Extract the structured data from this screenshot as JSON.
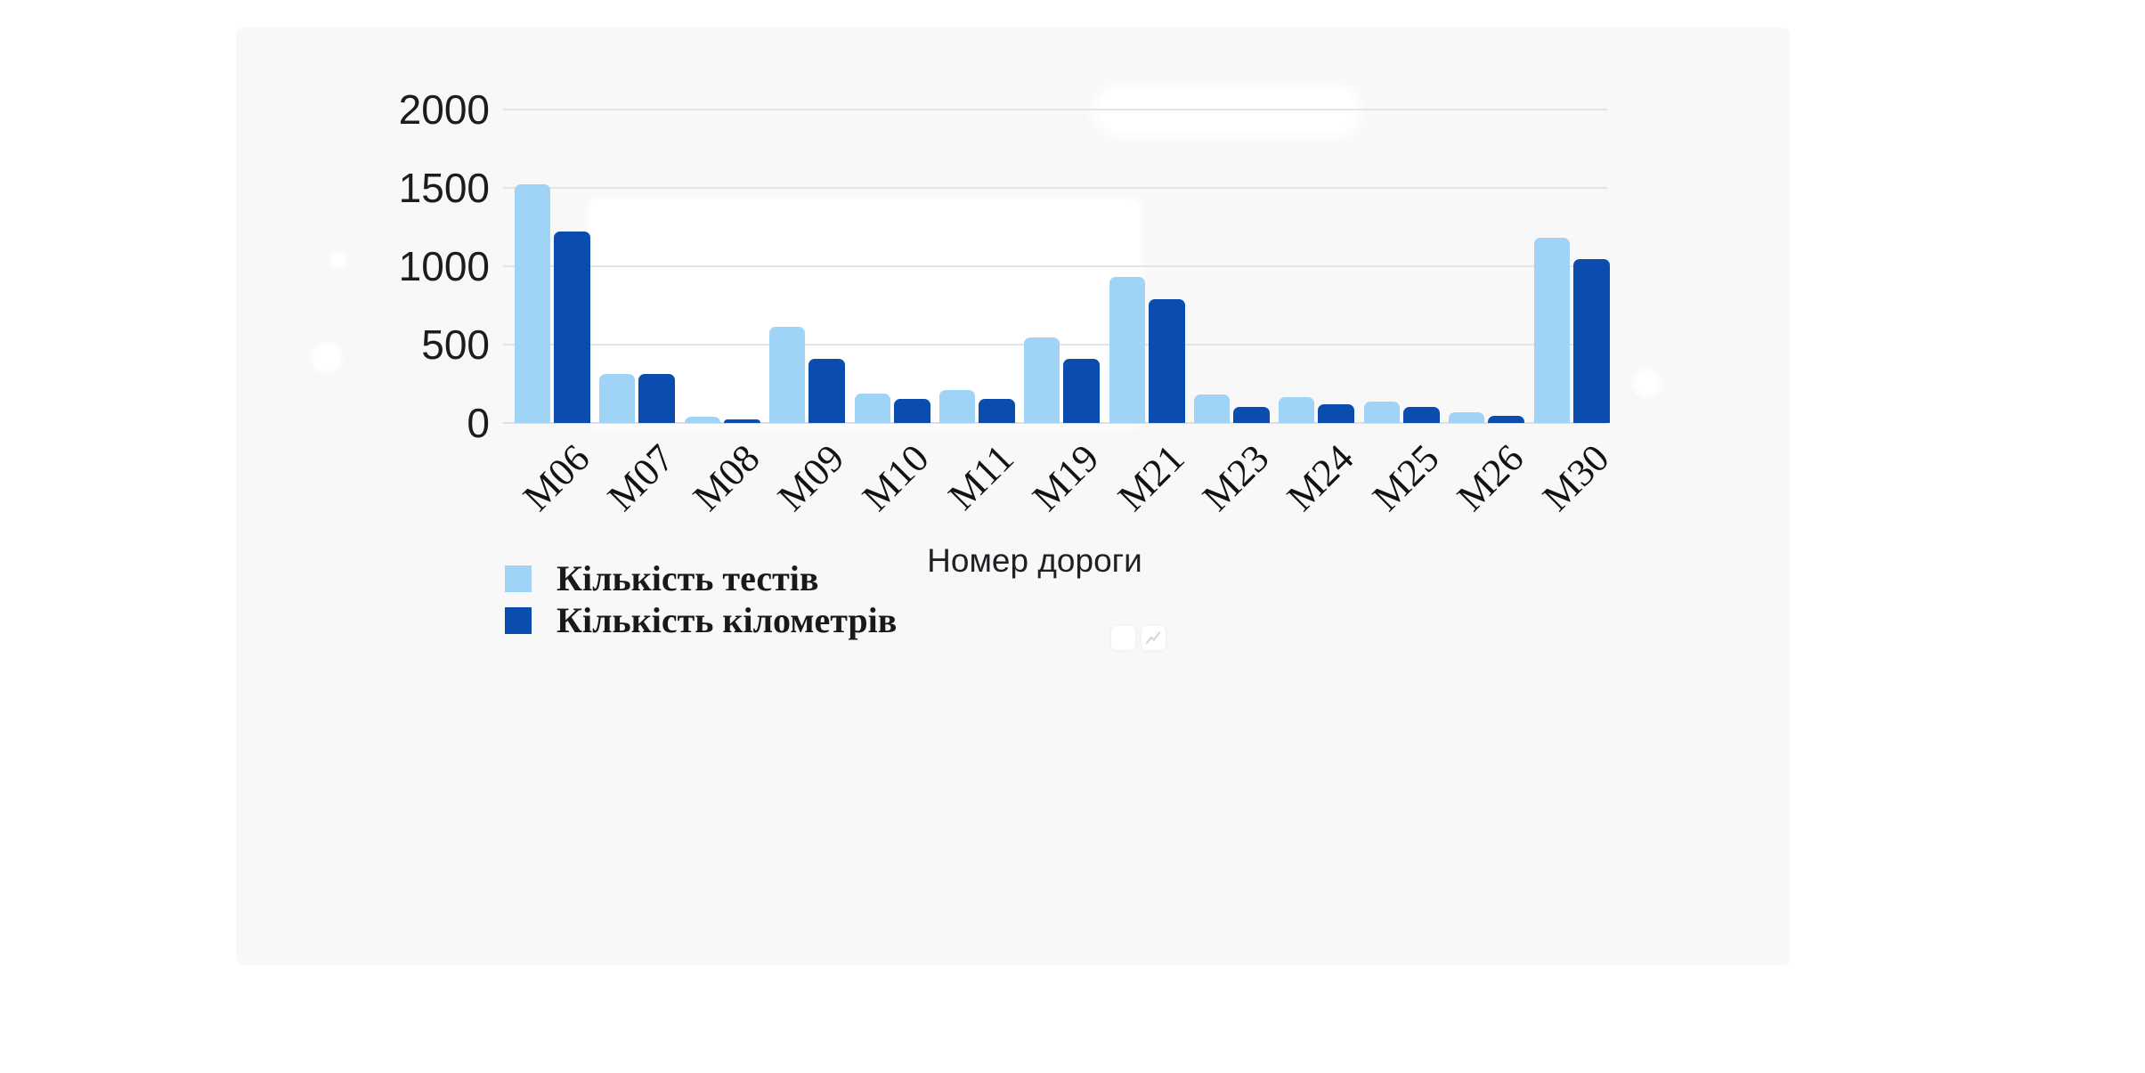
{
  "page": {
    "background": "#ffffff",
    "canvas_background": "#f8f8f9",
    "gridline_color": "#e4e4e6"
  },
  "chart_data": {
    "type": "bar",
    "title": "",
    "xlabel": "Номер дороги",
    "ylabel": "",
    "categories": [
      "М06",
      "М07",
      "М08",
      "М09",
      "М10",
      "М11",
      "М19",
      "М21",
      "М23",
      "М24",
      "М25",
      "М26",
      "М30"
    ],
    "series": [
      {
        "name": "Кількість тестів",
        "color": "#a0d4f7",
        "values": [
          1520,
          310,
          40,
          615,
          190,
          210,
          545,
          930,
          180,
          165,
          135,
          70,
          1180
        ]
      },
      {
        "name": "Кількість кілометрів",
        "color": "#0b4daf",
        "values": [
          1220,
          315,
          25,
          410,
          155,
          155,
          410,
          790,
          100,
          120,
          105,
          45,
          1045
        ]
      }
    ],
    "ylim": [
      0,
      2000
    ],
    "yticks": [
      0,
      500,
      1000,
      1500,
      2000
    ],
    "ytick_labels": [
      "0",
      "500",
      "1000",
      "1500",
      "2000"
    ],
    "grid": true,
    "legend_position": "bottom-left"
  },
  "icons": {
    "line_chart_icon": "trend-zigzag",
    "icon_color": "#d9d9dc"
  }
}
